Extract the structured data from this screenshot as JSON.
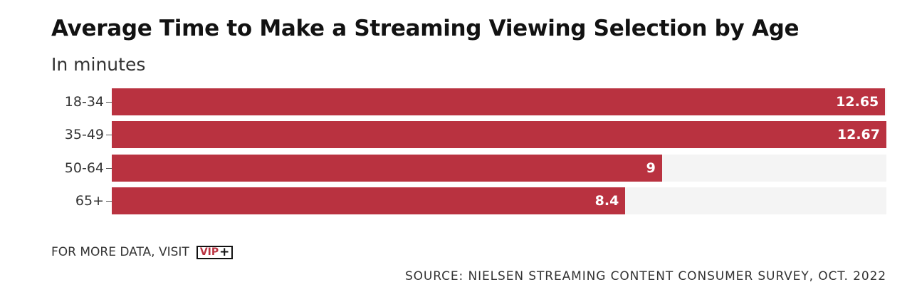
{
  "chart_data": {
    "type": "bar",
    "orientation": "horizontal",
    "title": "Average Time to Make a Streaming Viewing Selection by Age",
    "subtitle": "In minutes",
    "categories": [
      "18-34",
      "35-49",
      "50-64",
      "65+"
    ],
    "values": [
      12.65,
      12.67,
      9,
      8.4
    ],
    "value_labels": [
      "12.65",
      "12.67",
      "9",
      "8.4"
    ],
    "xlim": [
      0,
      12.67
    ],
    "grid": false,
    "legend": "none"
  },
  "colors": {
    "bar": "#b93240",
    "track": "#f4f4f4",
    "text": "#121212"
  },
  "footer": {
    "more_data_text": "FOR MORE DATA, VISIT",
    "logo_text": "VIP",
    "logo_plus": "+",
    "source": "SOURCE: NIELSEN STREAMING CONTENT CONSUMER SURVEY, OCT. 2022"
  }
}
